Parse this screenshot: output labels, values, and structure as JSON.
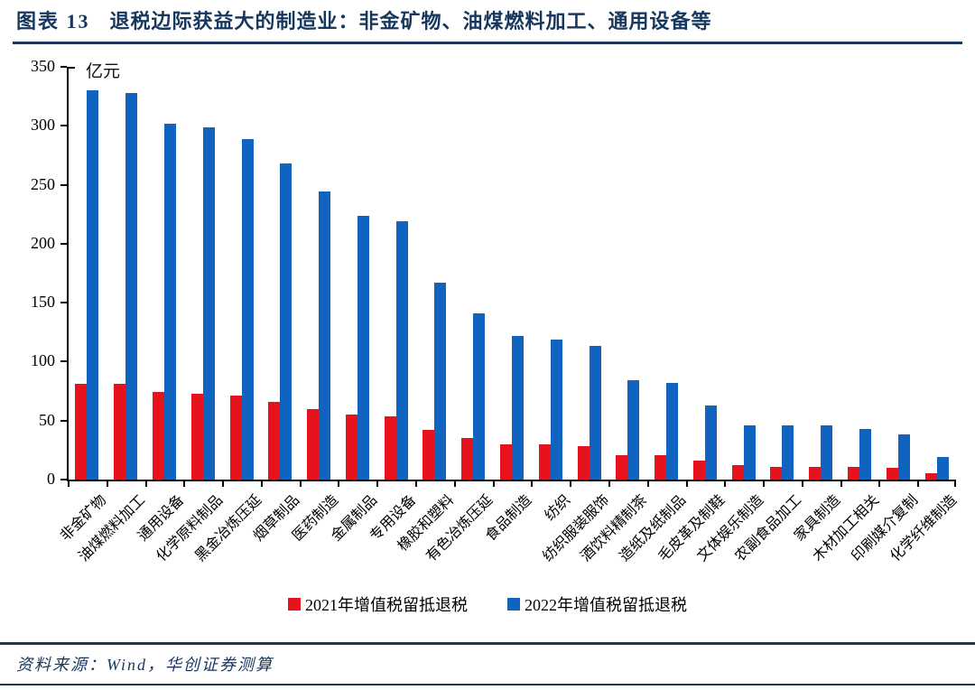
{
  "figure": {
    "label": "图表 13",
    "title": "退税边际获益大的制造业：非金矿物、油煤燃料加工、通用设备等",
    "source": "资料来源：Wind，华创证券测算"
  },
  "colors": {
    "navy": "#17375E",
    "red": "#E6131E",
    "blue": "#1063BE",
    "axis": "#000000"
  },
  "chart_data": {
    "type": "bar",
    "title": "退税边际获益大的制造业：非金矿物、油煤燃料加工、通用设备等",
    "unit_label": "亿元",
    "xlabel": "",
    "ylabel": "亿元",
    "ylim": [
      0,
      350
    ],
    "yticks": [
      0,
      50,
      100,
      150,
      200,
      250,
      300,
      350
    ],
    "grid": false,
    "legend_position": "bottom",
    "categories": [
      "非金矿物",
      "油煤燃料加工",
      "通用设备",
      "化学原料制品",
      "黑金冶炼压延",
      "烟草制品",
      "医药制造",
      "金属制品",
      "专用设备",
      "橡胶和塑料",
      "有色冶炼压延",
      "食品制造",
      "纺织",
      "纺织服装服饰",
      "酒饮料精制茶",
      "造纸及纸制品",
      "毛皮革及制鞋",
      "文体娱乐制造",
      "农副食品加工",
      "家具制造",
      "木材加工相关",
      "印刷媒介复制",
      "化学纤维制造"
    ],
    "series": [
      {
        "name": "2021年增值税留抵退税",
        "color": "#E6131E",
        "values": [
          81,
          81,
          74,
          73,
          71,
          66,
          60,
          55,
          54,
          42,
          35,
          30,
          30,
          28,
          21,
          21,
          16,
          12,
          11,
          11,
          11,
          10,
          5
        ]
      },
      {
        "name": "2022年增值税留抵退税",
        "color": "#1063BE",
        "values": [
          330,
          328,
          302,
          299,
          289,
          268,
          244,
          224,
          219,
          167,
          141,
          122,
          119,
          113,
          84,
          82,
          63,
          46,
          46,
          46,
          43,
          38,
          19
        ]
      }
    ]
  }
}
